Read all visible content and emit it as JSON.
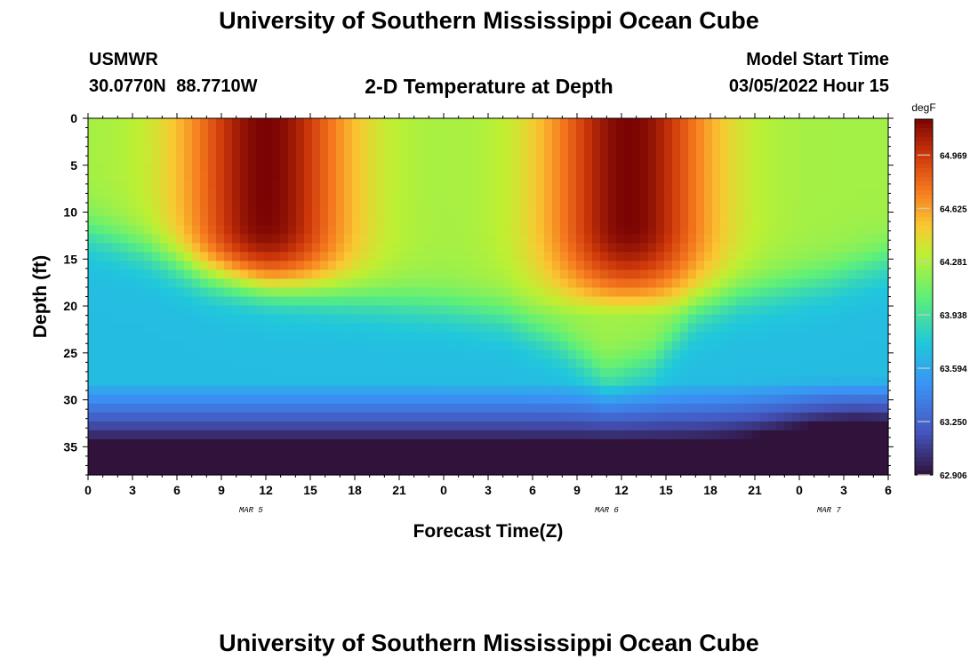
{
  "header": {
    "title": "University of Southern Mississippi Ocean Cube",
    "station": "USMWR",
    "coordinates": "30.0770N  88.7710W",
    "subtitle": "2-D Temperature at Depth",
    "model_label": "Model Start Time",
    "model_date": "03/05/2022 Hour 15"
  },
  "footer": {
    "title": "University of Southern Mississippi Ocean Cube"
  },
  "chart_data": {
    "type": "heatmap",
    "title": "2-D Temperature at Depth",
    "xlabel": "Forecast Time(Z)",
    "ylabel": "Depth (ft)",
    "x_hours_range": [
      0,
      54
    ],
    "x_tick_labels": [
      "0",
      "3",
      "6",
      "9",
      "12",
      "15",
      "18",
      "21",
      "0",
      "3",
      "6",
      "9",
      "12",
      "15",
      "18",
      "21",
      "0",
      "3",
      "6"
    ],
    "date_labels": [
      {
        "label": "MAR 5",
        "hour": 11
      },
      {
        "label": "MAR 6",
        "hour": 35
      },
      {
        "label": "MAR 7",
        "hour": 50
      }
    ],
    "y_range": [
      0,
      38
    ],
    "y_ticks": [
      0,
      5,
      10,
      15,
      20,
      25,
      30,
      35
    ],
    "y_reversed": true,
    "colorbar": {
      "unit": "degF",
      "min": 62.906,
      "max": 65.2,
      "tick_labels": [
        "64.969",
        "64.625",
        "64.281",
        "63.938",
        "63.594",
        "63.250",
        "62.906"
      ]
    },
    "upper_layer_depth_ft_by_hour": [
      [
        0,
        12
      ],
      [
        4,
        14
      ],
      [
        8,
        17
      ],
      [
        12,
        18.5
      ],
      [
        16,
        19
      ],
      [
        20,
        19.5
      ],
      [
        24,
        20
      ],
      [
        28,
        21
      ],
      [
        32,
        24
      ],
      [
        35,
        27.5
      ],
      [
        38,
        26
      ],
      [
        41,
        21
      ],
      [
        44,
        19
      ],
      [
        47,
        18
      ],
      [
        50,
        17
      ],
      [
        54,
        15
      ]
    ],
    "warm_cores": [
      {
        "hour": 12,
        "depth_ft": 7,
        "value": 65.2
      },
      {
        "hour": 36.5,
        "depth_ft": 7,
        "value": 65.2
      }
    ]
  }
}
